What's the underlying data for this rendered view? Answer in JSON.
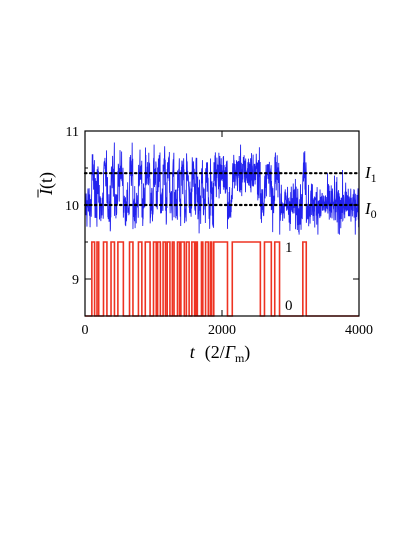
{
  "chart_data": {
    "type": "line",
    "xlabel": "t  (2/Γm)",
    "xlabel_parts": {
      "var": "t",
      "unit_open": "(2/",
      "unit_sym": "Γ",
      "unit_sub": "m",
      "unit_close": ")"
    },
    "ylabel": "Ī(t)",
    "ylabel_parts": {
      "var": "I",
      "arg": "(t)"
    },
    "xlim": [
      0,
      4000
    ],
    "ylim": [
      8.5,
      11
    ],
    "x_ticks": [
      {
        "value": 0,
        "label": "0"
      },
      {
        "value": 2000,
        "label": "2000"
      },
      {
        "value": 4000,
        "label": "4000"
      }
    ],
    "y_ticks": [
      {
        "value": 9,
        "label": "9"
      },
      {
        "value": 10,
        "label": "10"
      },
      {
        "value": 11,
        "label": "11"
      }
    ],
    "reference_lines": [
      {
        "name": "I1",
        "label_base": "I",
        "label_sub": "1",
        "y": 10.43,
        "style": "dotted"
      },
      {
        "name": "I0",
        "label_base": "I",
        "label_sub": "0",
        "y": 10.0,
        "style": "dotted"
      }
    ],
    "series": [
      {
        "kind": "noisy-signal",
        "color": "#2222ee",
        "noise_sd": 0.15,
        "levels": {
          "low": 10.0,
          "high": 10.43
        }
      },
      {
        "kind": "telegraph",
        "color": "#ee3322",
        "y_low": 8.5,
        "y_high": 9.5,
        "state_labels": {
          "high": "1",
          "low": "0"
        },
        "transitions": [
          100,
          140,
          175,
          200,
          270,
          320,
          380,
          430,
          480,
          560,
          650,
          700,
          780,
          830,
          880,
          950,
          1000,
          1040,
          1060,
          1100,
          1140,
          1175,
          1200,
          1240,
          1275,
          1300,
          1350,
          1380,
          1400,
          1450,
          1480,
          1520,
          1560,
          1600,
          1620,
          1640,
          1700,
          1720,
          1760,
          1800,
          1830,
          1850,
          1880,
          2080,
          2150,
          2560,
          2620,
          2720,
          2770,
          2840,
          3180,
          3230
        ],
        "start_state": "low",
        "end_state": "low"
      }
    ]
  }
}
